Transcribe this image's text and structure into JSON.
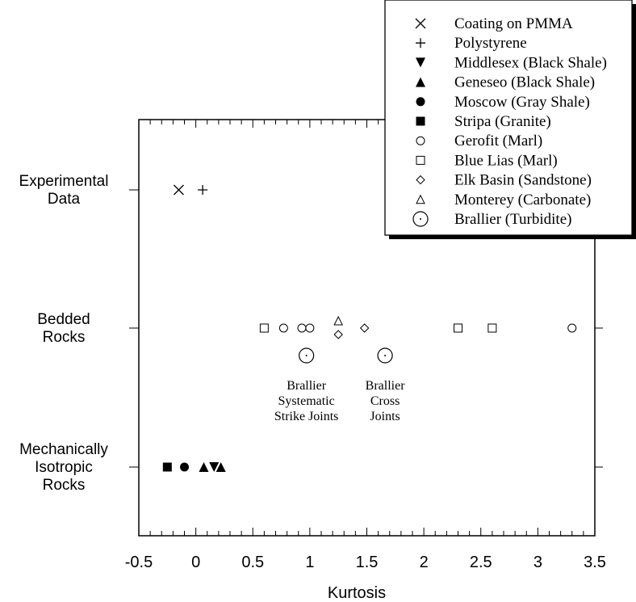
{
  "chart_data": {
    "type": "scatter",
    "title": "",
    "xlabel": "Kurtosis",
    "ylabel": "",
    "xlim": [
      -0.5,
      3.5
    ],
    "xticks": [
      "-0.5",
      "0",
      "0.5",
      "1",
      "1.5",
      "2",
      "2.5",
      "3",
      "3.5"
    ],
    "categories": [
      [
        "Experimental",
        "Data"
      ],
      [
        "Bedded",
        "Rocks"
      ],
      [
        "Mechanically",
        "Isotropic",
        "Rocks"
      ]
    ],
    "grid": false,
    "legend_position": "top-right",
    "series": [
      {
        "name": "Coating on PMMA",
        "marker": "x",
        "points": [
          {
            "x": -0.15,
            "category": 0
          }
        ]
      },
      {
        "name": "Polystyrene",
        "marker": "plus",
        "points": [
          {
            "x": 0.06,
            "category": 0
          }
        ]
      },
      {
        "name": "Middlesex (Black Shale)",
        "marker": "triangle-down-filled",
        "points": [
          {
            "x": 0.16,
            "category": 2
          }
        ]
      },
      {
        "name": "Geneseo (Black Shale)",
        "marker": "triangle-up-filled",
        "points": [
          {
            "x": 0.07,
            "category": 2
          },
          {
            "x": 0.22,
            "category": 2
          }
        ]
      },
      {
        "name": "Moscow (Gray Shale)",
        "marker": "circle-filled",
        "points": [
          {
            "x": -0.1,
            "category": 2
          }
        ]
      },
      {
        "name": "Stripa (Granite)",
        "marker": "square-filled",
        "points": [
          {
            "x": -0.25,
            "category": 2
          }
        ]
      },
      {
        "name": "Gerofit (Marl)",
        "marker": "circle-open",
        "points": [
          {
            "x": 0.77,
            "category": 1
          },
          {
            "x": 0.93,
            "category": 1
          },
          {
            "x": 1.0,
            "category": 1
          },
          {
            "x": 3.3,
            "category": 1
          }
        ]
      },
      {
        "name": "Blue Lias (Marl)",
        "marker": "square-open",
        "points": [
          {
            "x": 0.6,
            "category": 1
          },
          {
            "x": 2.3,
            "category": 1
          },
          {
            "x": 2.6,
            "category": 1
          }
        ]
      },
      {
        "name": "Elk Basin (Sandstone)",
        "marker": "diamond-open",
        "points": [
          {
            "x": 1.25,
            "category": 1,
            "offset": "below"
          },
          {
            "x": 1.48,
            "category": 1
          }
        ]
      },
      {
        "name": "Monterey (Carbonate)",
        "marker": "triangle-up-open",
        "points": [
          {
            "x": 1.25,
            "category": 1,
            "offset": "above"
          }
        ]
      },
      {
        "name": "Brallier (Turbidite)",
        "marker": "circle-dot",
        "points": [
          {
            "x": 0.97,
            "category": 1,
            "offset": "below2"
          },
          {
            "x": 1.66,
            "category": 1,
            "offset": "below2"
          }
        ]
      }
    ],
    "annotations": [
      {
        "lines": [
          "Brallier",
          "Systematic",
          "Strike Joints"
        ],
        "x": 0.97,
        "category": 1
      },
      {
        "lines": [
          "Brallier",
          "Cross",
          "Joints"
        ],
        "x": 1.66,
        "category": 1
      }
    ]
  }
}
